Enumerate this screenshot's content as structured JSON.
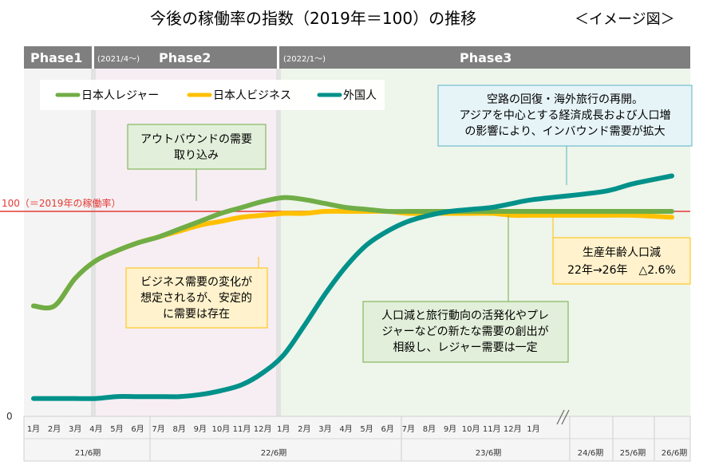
{
  "title": "今後の稼働率の指数（2019年＝100）の推移",
  "subtitle": "＜イメージ図＞",
  "phases": [
    {
      "label": "Phase1",
      "note": ""
    },
    {
      "label": "Phase2",
      "note": "(2021/4～)"
    },
    {
      "label": "Phase3",
      "note": "(2022/1～)"
    }
  ],
  "reference_line": {
    "value": 100,
    "label": "100（＝2019年の稼働率）",
    "color": "#e53935"
  },
  "y_zero_label": "0",
  "x_months": [
    "1月",
    "2月",
    "3月",
    "4月",
    "5月",
    "6月",
    "7月",
    "8月",
    "9月",
    "10月",
    "11月",
    "12月",
    "1月",
    "2月",
    "3月",
    "4月",
    "5月",
    "6月",
    "7月",
    "8月",
    "9月",
    "10月",
    "11月",
    "12月",
    "1月"
  ],
  "x_periods": [
    "21/6期",
    "22/6期",
    "23/6期",
    "24/6期",
    "25/6期",
    "26/6期"
  ],
  "legend": [
    "日本人レジャー",
    "日本人ビジネス",
    "外国人"
  ],
  "annotations": {
    "outbound": [
      "アウトバウンドの需要",
      "取り込み"
    ],
    "business": [
      "ビジネス需要の変化が",
      "想定されるが、安定的",
      "に需要は存在"
    ],
    "inbound": [
      "空路の回復・海外旅行の再開。",
      "アジアを中心とする経済成長および人口増",
      "の影響により、インバウンド需要が拡大"
    ],
    "population": [
      "生産年齢人口減",
      "22年→26年　△2.6%"
    ],
    "leisure": [
      "人口減と旅行動向の活発化やプレ",
      "ジャーなどの新たな需要の創出が",
      "相殺し、レジャー需要は一定"
    ]
  },
  "chart_data": {
    "type": "line",
    "title": "今後の稼働率の指数（2019年＝100）の推移",
    "xlabel": "",
    "ylabel": "",
    "y_ticks": [
      0,
      100
    ],
    "ylim": [
      0,
      133
    ],
    "categories": [
      "21/1",
      "21/2",
      "21/3",
      "21/4",
      "21/5",
      "21/6",
      "21/7",
      "21/8",
      "21/9",
      "21/10",
      "21/11",
      "21/12",
      "22/1",
      "22/2",
      "22/3",
      "22/4",
      "22/5",
      "22/6",
      "22/7",
      "22/8",
      "22/9",
      "22/10",
      "22/11",
      "22/12",
      "23/1",
      "24/6期",
      "25/6期",
      "26/6期"
    ],
    "series": [
      {
        "name": "日本人レジャー",
        "color": "#70ad47",
        "values": [
          52,
          52,
          66,
          75,
          80,
          84,
          87,
          91,
          95,
          99,
          102,
          105,
          107,
          106,
          104,
          102,
          101,
          100,
          100,
          100,
          100,
          100,
          100,
          100,
          100,
          100,
          100,
          100
        ]
      },
      {
        "name": "日本人ビジネス",
        "color": "#ffc000",
        "values": [
          52,
          52,
          66,
          75,
          80,
          84,
          87,
          90,
          93,
          95,
          97,
          98,
          99,
          99,
          100,
          100,
          100,
          100,
          99,
          99,
          99,
          99,
          99,
          98,
          98,
          98,
          98,
          97
        ]
      },
      {
        "name": "外国人",
        "color": "#00918a",
        "values": [
          5,
          5,
          5,
          5,
          6,
          6,
          6,
          6,
          7,
          9,
          12,
          18,
          27,
          42,
          58,
          72,
          83,
          90,
          95,
          98,
          100,
          101,
          102,
          104,
          106,
          110,
          114,
          118
        ]
      }
    ],
    "grid": false,
    "legend_position": "top-left"
  }
}
